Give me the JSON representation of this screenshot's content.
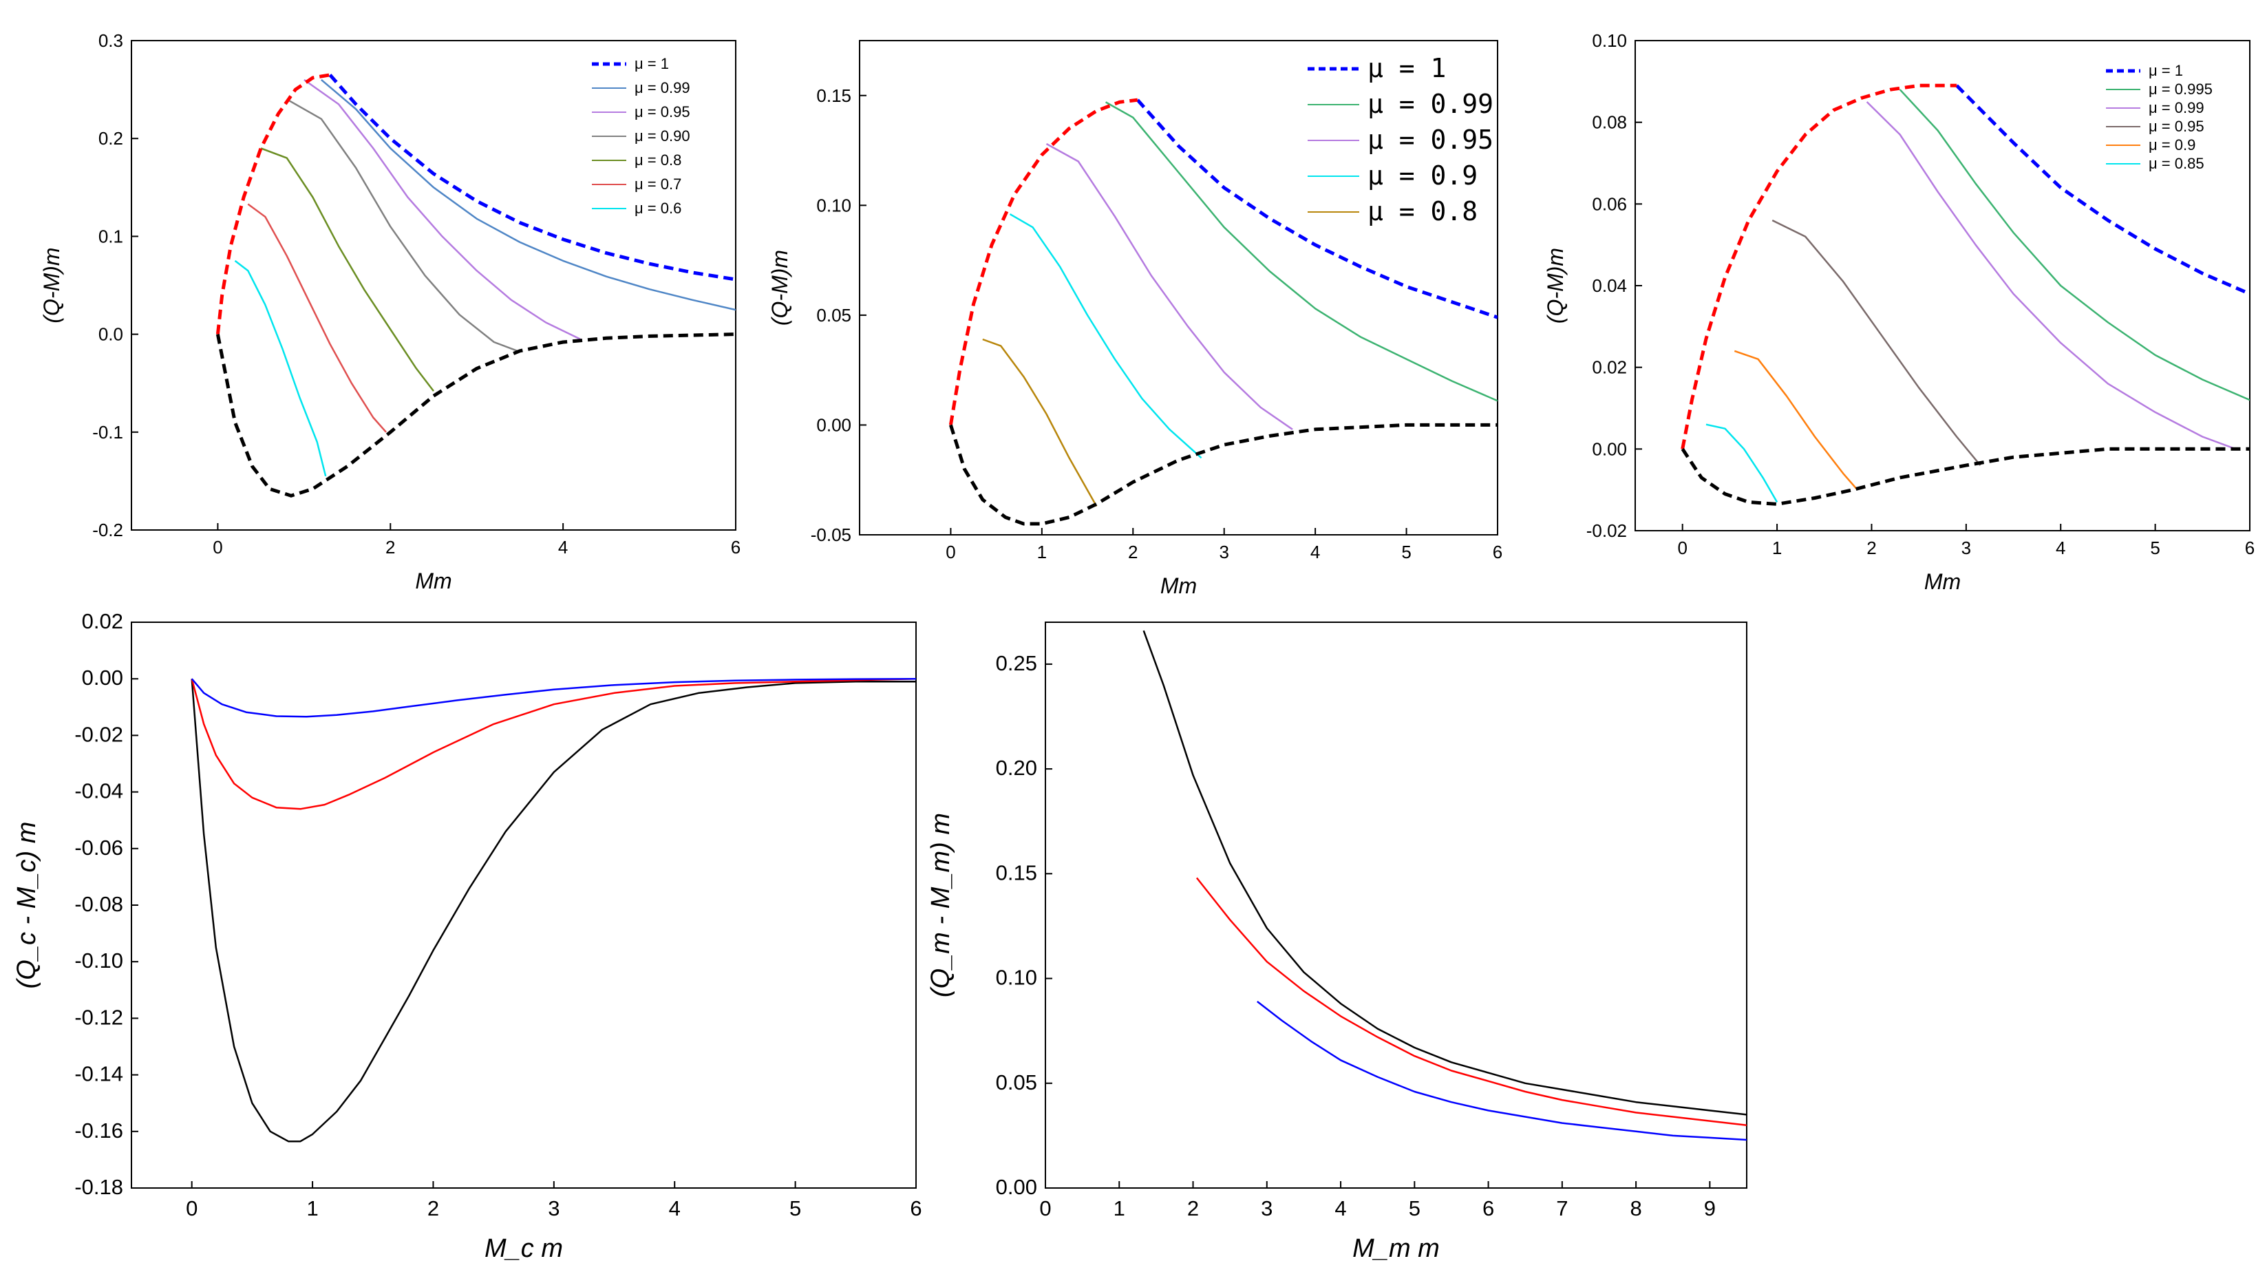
{
  "chart_data": [
    {
      "type": "line",
      "panel": "top-left",
      "xlabel": "Mm",
      "ylabel": "(Q-M)m",
      "xlim": [
        -1,
        6
      ],
      "ylim": [
        -0.2,
        0.3
      ],
      "xticks": [
        "0",
        "2",
        "4",
        "6"
      ],
      "yticks": [
        "-0.2",
        "-0.1",
        "0.0",
        "0.1",
        "0.2",
        "0.3"
      ],
      "legend_position": "top-right",
      "series": [
        {
          "name": "μ = 1",
          "color": "#0000ff",
          "style": "dashed",
          "x": [
            1.3,
            1.6,
            2.0,
            2.5,
            3.0,
            3.5,
            4.0,
            4.5,
            5.0,
            5.5,
            6.0
          ],
          "y": [
            0.265,
            0.235,
            0.2,
            0.164,
            0.136,
            0.114,
            0.097,
            0.083,
            0.072,
            0.063,
            0.056
          ]
        },
        {
          "name": "μ = 0.99",
          "color": "#4f86c6",
          "style": "solid",
          "x": [
            1.2,
            1.6,
            2.0,
            2.5,
            3.0,
            3.5,
            4.0,
            4.5,
            5.0,
            5.5,
            6.0
          ],
          "y": [
            0.26,
            0.23,
            0.19,
            0.15,
            0.118,
            0.094,
            0.075,
            0.059,
            0.046,
            0.035,
            0.025
          ]
        },
        {
          "name": "μ = 0.95",
          "color": "#b57be0",
          "style": "solid",
          "x": [
            1.0,
            1.4,
            1.8,
            2.2,
            2.6,
            3.0,
            3.4,
            3.8,
            4.2
          ],
          "y": [
            0.26,
            0.235,
            0.19,
            0.14,
            0.1,
            0.065,
            0.035,
            0.012,
            -0.005
          ]
        },
        {
          "name": "μ = 0.90",
          "color": "#808080",
          "style": "solid",
          "x": [
            0.8,
            1.2,
            1.6,
            2.0,
            2.4,
            2.8,
            3.2,
            3.5
          ],
          "y": [
            0.24,
            0.22,
            0.17,
            0.11,
            0.06,
            0.02,
            -0.008,
            -0.018
          ]
        },
        {
          "name": "μ = 0.8",
          "color": "#6b8e23",
          "style": "solid",
          "x": [
            0.5,
            0.8,
            1.1,
            1.4,
            1.7,
            2.0,
            2.3,
            2.5
          ],
          "y": [
            0.19,
            0.18,
            0.14,
            0.09,
            0.045,
            0.005,
            -0.035,
            -0.058
          ]
        },
        {
          "name": "μ = 0.7",
          "color": "#e05050",
          "style": "solid",
          "x": [
            0.35,
            0.55,
            0.8,
            1.05,
            1.3,
            1.55,
            1.8,
            1.95
          ],
          "y": [
            0.133,
            0.12,
            0.08,
            0.035,
            -0.01,
            -0.05,
            -0.085,
            -0.1
          ]
        },
        {
          "name": "μ = 0.6",
          "color": "#00e5ee",
          "style": "solid",
          "x": [
            0.2,
            0.35,
            0.55,
            0.75,
            0.95,
            1.15,
            1.25
          ],
          "y": [
            0.075,
            0.065,
            0.03,
            -0.015,
            -0.065,
            -0.11,
            -0.145
          ]
        },
        {
          "name": "upper envelope",
          "color": "#ff0000",
          "style": "dashed",
          "legend": false,
          "x": [
            0.0,
            0.05,
            0.15,
            0.3,
            0.5,
            0.7,
            0.9,
            1.1,
            1.3
          ],
          "y": [
            0.0,
            0.04,
            0.09,
            0.14,
            0.19,
            0.225,
            0.25,
            0.262,
            0.265
          ]
        },
        {
          "name": "lower envelope",
          "color": "#000000",
          "style": "dashed",
          "legend": false,
          "x": [
            0.0,
            0.2,
            0.4,
            0.6,
            0.85,
            1.1,
            1.5,
            2.0,
            2.5,
            3.0,
            3.5,
            4.0,
            4.5,
            5.0,
            5.5,
            6.0
          ],
          "y": [
            0.0,
            -0.09,
            -0.135,
            -0.158,
            -0.165,
            -0.158,
            -0.135,
            -0.1,
            -0.063,
            -0.035,
            -0.017,
            -0.008,
            -0.004,
            -0.002,
            -0.001,
            0.0
          ]
        }
      ]
    },
    {
      "type": "line",
      "panel": "top-middle",
      "xlabel": "Mm",
      "ylabel": "(Q-M)m",
      "xlim": [
        -1,
        6
      ],
      "ylim": [
        -0.05,
        0.175
      ],
      "xticks": [
        "0",
        "1",
        "2",
        "3",
        "4",
        "5",
        "6"
      ],
      "yticks": [
        "-0.05",
        "0.00",
        "0.05",
        "0.10",
        "0.15"
      ],
      "legend_position": "top-right",
      "series": [
        {
          "name": "μ = 1",
          "color": "#0000ff",
          "style": "dashed",
          "x": [
            2.05,
            2.5,
            3.0,
            3.5,
            4.0,
            4.5,
            5.0,
            5.5,
            6.0
          ],
          "y": [
            0.148,
            0.127,
            0.108,
            0.094,
            0.082,
            0.072,
            0.063,
            0.056,
            0.049
          ]
        },
        {
          "name": "μ = 0.99",
          "color": "#3cb371",
          "style": "solid",
          "x": [
            1.7,
            2.0,
            2.5,
            3.0,
            3.5,
            4.0,
            4.5,
            5.0,
            5.5,
            6.0
          ],
          "y": [
            0.147,
            0.14,
            0.115,
            0.09,
            0.07,
            0.053,
            0.04,
            0.03,
            0.02,
            0.011
          ]
        },
        {
          "name": "μ = 0.95",
          "color": "#b57be0",
          "style": "solid",
          "x": [
            1.05,
            1.4,
            1.8,
            2.2,
            2.6,
            3.0,
            3.4,
            3.75
          ],
          "y": [
            0.128,
            0.12,
            0.095,
            0.068,
            0.045,
            0.024,
            0.008,
            -0.002
          ]
        },
        {
          "name": "μ = 0.9",
          "color": "#00e5ee",
          "style": "solid",
          "x": [
            0.65,
            0.9,
            1.2,
            1.5,
            1.8,
            2.1,
            2.4,
            2.75
          ],
          "y": [
            0.096,
            0.09,
            0.072,
            0.05,
            0.03,
            0.012,
            -0.002,
            -0.015
          ]
        },
        {
          "name": "μ = 0.8",
          "color": "#b8860b",
          "style": "solid",
          "x": [
            0.35,
            0.55,
            0.8,
            1.05,
            1.3,
            1.6
          ],
          "y": [
            0.039,
            0.036,
            0.022,
            0.005,
            -0.015,
            -0.037
          ]
        },
        {
          "name": "upper envelope",
          "color": "#ff0000",
          "style": "dashed",
          "legend": false,
          "x": [
            0.0,
            0.1,
            0.25,
            0.45,
            0.7,
            1.0,
            1.3,
            1.6,
            1.85,
            2.05
          ],
          "y": [
            0.0,
            0.025,
            0.055,
            0.082,
            0.105,
            0.123,
            0.135,
            0.143,
            0.147,
            0.148
          ]
        },
        {
          "name": "lower envelope",
          "color": "#000000",
          "style": "dashed",
          "legend": false,
          "x": [
            0.0,
            0.15,
            0.35,
            0.6,
            0.8,
            1.0,
            1.3,
            1.6,
            2.0,
            2.5,
            3.0,
            3.5,
            4.0,
            4.5,
            5.0,
            5.5,
            6.0
          ],
          "y": [
            0.0,
            -0.02,
            -0.034,
            -0.042,
            -0.045,
            -0.045,
            -0.042,
            -0.036,
            -0.026,
            -0.016,
            -0.009,
            -0.005,
            -0.002,
            -0.001,
            0.0,
            0.0,
            0.0
          ]
        }
      ]
    },
    {
      "type": "line",
      "panel": "top-right",
      "xlabel": "Mm",
      "ylabel": "(Q-M)m",
      "xlim": [
        -0.5,
        6
      ],
      "ylim": [
        -0.02,
        0.1
      ],
      "xticks": [
        "0",
        "1",
        "2",
        "3",
        "4",
        "5",
        "6"
      ],
      "yticks": [
        "-0.02",
        "0.00",
        "0.02",
        "0.04",
        "0.06",
        "0.08",
        "0.10"
      ],
      "legend_position": "top-right",
      "series": [
        {
          "name": "μ = 1",
          "color": "#0000ff",
          "style": "dashed",
          "x": [
            2.9,
            3.5,
            4.0,
            4.5,
            5.0,
            5.5,
            6.0
          ],
          "y": [
            0.089,
            0.075,
            0.064,
            0.056,
            0.049,
            0.043,
            0.038
          ]
        },
        {
          "name": "μ = 0.995",
          "color": "#3cb371",
          "style": "solid",
          "x": [
            2.3,
            2.7,
            3.1,
            3.5,
            4.0,
            4.5,
            5.0,
            5.5,
            6.0
          ],
          "y": [
            0.088,
            0.078,
            0.065,
            0.053,
            0.04,
            0.031,
            0.023,
            0.017,
            0.012
          ]
        },
        {
          "name": "μ = 0.99",
          "color": "#b57be0",
          "style": "solid",
          "x": [
            1.95,
            2.3,
            2.7,
            3.1,
            3.5,
            4.0,
            4.5,
            5.0,
            5.5,
            5.85
          ],
          "y": [
            0.085,
            0.077,
            0.063,
            0.05,
            0.038,
            0.026,
            0.016,
            0.009,
            0.003,
            0.0
          ]
        },
        {
          "name": "μ = 0.95",
          "color": "#7a6a6a",
          "style": "solid",
          "x": [
            0.95,
            1.3,
            1.7,
            2.1,
            2.5,
            2.9,
            3.15
          ],
          "y": [
            0.056,
            0.052,
            0.041,
            0.028,
            0.015,
            0.003,
            -0.004
          ]
        },
        {
          "name": "μ = 0.9",
          "color": "#ff7f0e",
          "style": "solid",
          "x": [
            0.55,
            0.8,
            1.1,
            1.4,
            1.7,
            1.85
          ],
          "y": [
            0.024,
            0.022,
            0.013,
            0.003,
            -0.006,
            -0.01
          ]
        },
        {
          "name": "μ = 0.85",
          "color": "#00e5ee",
          "style": "solid",
          "x": [
            0.25,
            0.45,
            0.65,
            0.85,
            1.0
          ],
          "y": [
            0.006,
            0.005,
            0.0,
            -0.007,
            -0.013
          ]
        },
        {
          "name": "upper envelope",
          "color": "#ff0000",
          "style": "dashed",
          "legend": false,
          "x": [
            0.0,
            0.1,
            0.25,
            0.45,
            0.7,
            1.0,
            1.3,
            1.6,
            1.9,
            2.2,
            2.5,
            2.9
          ],
          "y": [
            0.0,
            0.012,
            0.027,
            0.042,
            0.056,
            0.068,
            0.077,
            0.083,
            0.086,
            0.088,
            0.089,
            0.089
          ]
        },
        {
          "name": "lower envelope",
          "color": "#000000",
          "style": "dashed",
          "legend": false,
          "x": [
            0.0,
            0.2,
            0.45,
            0.7,
            1.0,
            1.4,
            1.8,
            2.3,
            3.0,
            3.5,
            4.0,
            4.5,
            5.0,
            5.5,
            6.0
          ],
          "y": [
            0.0,
            -0.007,
            -0.011,
            -0.013,
            -0.0135,
            -0.012,
            -0.01,
            -0.007,
            -0.004,
            -0.002,
            -0.001,
            0.0,
            0.0,
            0.0,
            0.0
          ]
        }
      ]
    },
    {
      "type": "line",
      "panel": "bottom-left",
      "xlabel": "M_c m",
      "ylabel": "(Q_c - M_c) m",
      "xlim": [
        -0.5,
        6
      ],
      "ylim": [
        -0.18,
        0.02
      ],
      "xticks": [
        "0",
        "1",
        "2",
        "3",
        "4",
        "5",
        "6"
      ],
      "yticks": [
        "0.02",
        "0.00",
        "-0.02",
        "-0.04",
        "-0.06",
        "-0.08",
        "-0.10",
        "-0.12",
        "-0.14",
        "-0.16",
        "-0.18"
      ],
      "series": [
        {
          "name": "black",
          "color": "#000000",
          "style": "solid",
          "x": [
            0.0,
            0.1,
            0.2,
            0.35,
            0.5,
            0.65,
            0.8,
            0.9,
            1.0,
            1.2,
            1.4,
            1.6,
            1.8,
            2.0,
            2.3,
            2.6,
            3.0,
            3.4,
            3.8,
            4.2,
            4.6,
            5.0,
            5.5,
            6.0
          ],
          "y": [
            0.0,
            -0.055,
            -0.095,
            -0.13,
            -0.15,
            -0.16,
            -0.1635,
            -0.1635,
            -0.161,
            -0.153,
            -0.142,
            -0.127,
            -0.112,
            -0.096,
            -0.074,
            -0.054,
            -0.033,
            -0.018,
            -0.009,
            -0.005,
            -0.003,
            -0.0015,
            -0.001,
            -0.001
          ]
        },
        {
          "name": "red",
          "color": "#ff0000",
          "style": "solid",
          "x": [
            0.0,
            0.1,
            0.2,
            0.35,
            0.5,
            0.7,
            0.9,
            1.1,
            1.3,
            1.6,
            2.0,
            2.5,
            3.0,
            3.5,
            4.0,
            4.5,
            5.0,
            5.5,
            6.0
          ],
          "y": [
            0.0,
            -0.016,
            -0.027,
            -0.037,
            -0.042,
            -0.0455,
            -0.046,
            -0.0445,
            -0.041,
            -0.035,
            -0.026,
            -0.016,
            -0.009,
            -0.005,
            -0.0025,
            -0.0015,
            -0.001,
            -0.0005,
            0.0
          ]
        },
        {
          "name": "blue",
          "color": "#0000ff",
          "style": "solid",
          "x": [
            0.0,
            0.1,
            0.25,
            0.45,
            0.7,
            0.95,
            1.2,
            1.5,
            1.8,
            2.2,
            2.6,
            3.0,
            3.5,
            4.0,
            4.5,
            5.0,
            5.5,
            6.0
          ],
          "y": [
            0.0,
            -0.005,
            -0.009,
            -0.0118,
            -0.0132,
            -0.0134,
            -0.0128,
            -0.0115,
            -0.0098,
            -0.0076,
            -0.0056,
            -0.0038,
            -0.0022,
            -0.0012,
            -0.0006,
            -0.0003,
            -0.0001,
            0.0
          ]
        }
      ]
    },
    {
      "type": "line",
      "panel": "bottom-right",
      "xlabel": "M_m m",
      "ylabel": "(Q_m - M_m) m",
      "xlim": [
        0,
        9.5
      ],
      "ylim": [
        0,
        0.27
      ],
      "xticks": [
        "0",
        "1",
        "2",
        "3",
        "4",
        "5",
        "6",
        "7",
        "8",
        "9"
      ],
      "yticks": [
        "0.00",
        "0.05",
        "0.10",
        "0.15",
        "0.20",
        "0.25"
      ],
      "series": [
        {
          "name": "black",
          "color": "#000000",
          "style": "solid",
          "x": [
            1.33,
            1.6,
            2.0,
            2.5,
            3.0,
            3.5,
            4.0,
            4.5,
            5.0,
            5.5,
            6.0,
            6.5,
            7.0,
            7.5,
            8.0,
            8.5,
            9.0,
            9.5
          ],
          "y": [
            0.266,
            0.24,
            0.197,
            0.155,
            0.124,
            0.103,
            0.088,
            0.076,
            0.067,
            0.06,
            0.055,
            0.05,
            0.047,
            0.044,
            0.041,
            0.039,
            0.037,
            0.035
          ]
        },
        {
          "name": "red",
          "color": "#ff0000",
          "style": "solid",
          "x": [
            2.05,
            2.5,
            3.0,
            3.5,
            4.0,
            4.5,
            5.0,
            5.5,
            6.0,
            6.5,
            7.0,
            7.5,
            8.0,
            8.5,
            9.0,
            9.5
          ],
          "y": [
            0.148,
            0.128,
            0.108,
            0.094,
            0.082,
            0.072,
            0.063,
            0.056,
            0.051,
            0.046,
            0.042,
            0.039,
            0.036,
            0.034,
            0.032,
            0.03
          ]
        },
        {
          "name": "blue",
          "color": "#0000ff",
          "style": "solid",
          "x": [
            2.87,
            3.2,
            3.6,
            4.0,
            4.5,
            5.0,
            5.5,
            6.0,
            6.5,
            7.0,
            7.5,
            8.0,
            8.5,
            9.0,
            9.5
          ],
          "y": [
            0.089,
            0.08,
            0.07,
            0.061,
            0.053,
            0.046,
            0.041,
            0.037,
            0.034,
            0.031,
            0.029,
            0.027,
            0.025,
            0.024,
            0.023
          ]
        }
      ]
    }
  ]
}
